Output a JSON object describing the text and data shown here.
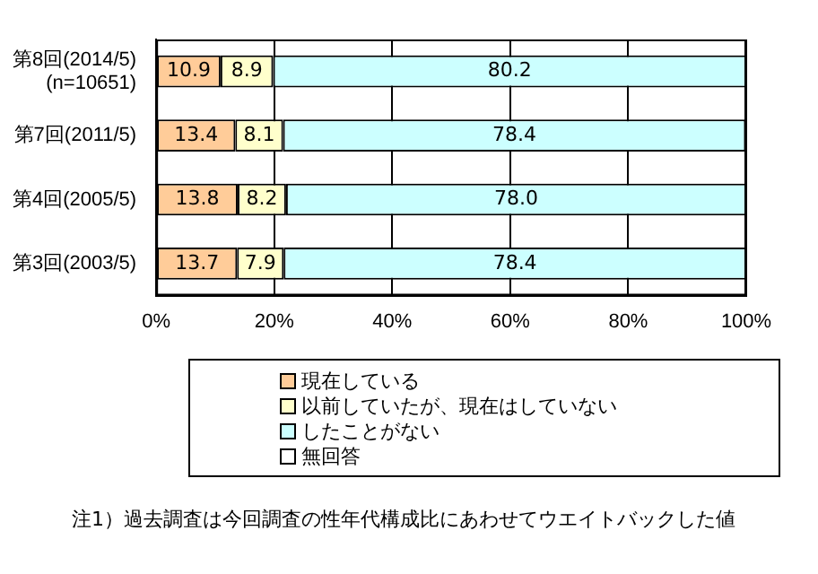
{
  "chart_data": {
    "type": "bar",
    "orientation": "horizontal",
    "stacked": true,
    "categories": [
      "第8回(2014/5)\n(n=10651)",
      "第7回(2011/5)",
      "第4回(2005/5)",
      "第3回(2003/5)"
    ],
    "series": [
      {
        "name": "現在している",
        "color": "#ffcc99",
        "values": [
          10.9,
          13.4,
          13.8,
          13.7
        ],
        "value_labels": [
          "10.9",
          "13.4",
          "13.8",
          "13.7"
        ]
      },
      {
        "name": "以前していたが、現在はしていない",
        "color": "#ffffcc",
        "values": [
          8.9,
          8.1,
          8.2,
          7.9
        ],
        "value_labels": [
          "8.9",
          "8.1",
          "8.2",
          "7.9"
        ]
      },
      {
        "name": "したことがない",
        "color": "#ccffff",
        "values": [
          80.2,
          78.4,
          78.0,
          78.4
        ],
        "value_labels": [
          "80.2",
          "78.4",
          "78.0",
          "78.4"
        ]
      },
      {
        "name": "無回答",
        "color": "#ffffff",
        "values": [
          null,
          null,
          null,
          null
        ]
      }
    ],
    "xlim": [
      0,
      100
    ],
    "xticks": [
      {
        "value": 0,
        "label": "0%"
      },
      {
        "value": 20,
        "label": "20%"
      },
      {
        "value": 40,
        "label": "40%"
      },
      {
        "value": 60,
        "label": "60%"
      },
      {
        "value": 80,
        "label": "80%"
      },
      {
        "value": 100,
        "label": "100%"
      }
    ],
    "grid": "x",
    "legend": "bottom",
    "annotations": [
      "注1）過去調査は今回調査の性年代構成比にあわせてウエイトバックした値"
    ]
  }
}
